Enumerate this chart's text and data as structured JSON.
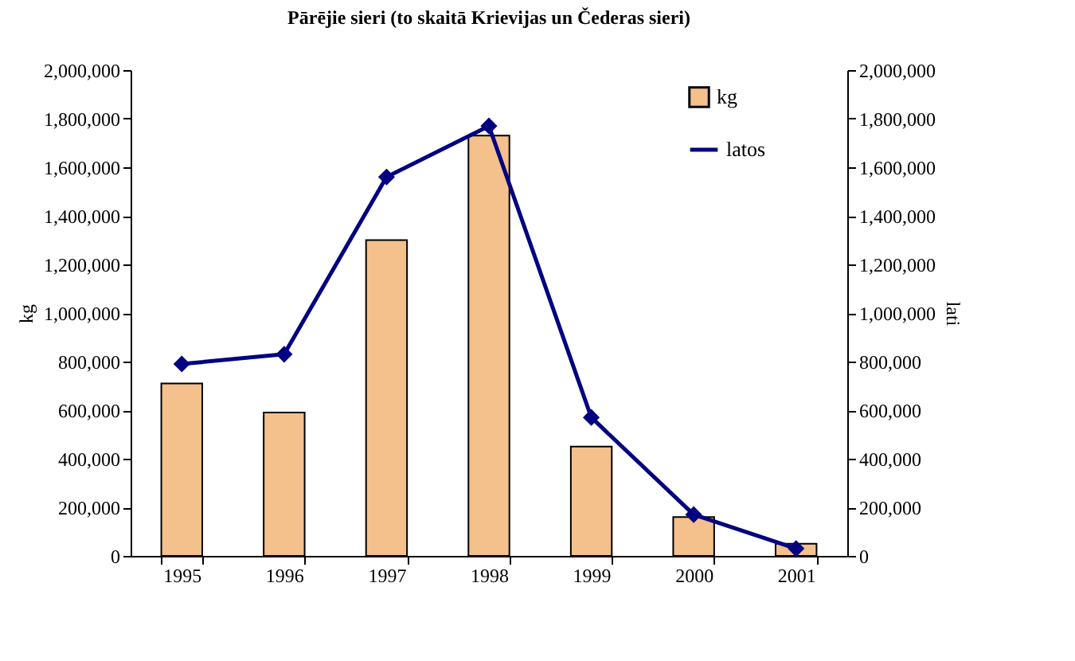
{
  "chart_data": {
    "type": "bar",
    "title": "Pārējie sieri (to skaitā Krievijas un Čederas sieri)",
    "categories": [
      "1995",
      "1996",
      "1997",
      "1998",
      "1999",
      "2000",
      "2001"
    ],
    "series": [
      {
        "name": "kg",
        "color": "#f4c08c",
        "values": [
          710000,
          590000,
          1300000,
          1730000,
          450000,
          160000,
          50000
        ]
      },
      {
        "name": "latos",
        "type": "line",
        "axis": "y2",
        "color": "#000080",
        "values": [
          790000,
          830000,
          1560000,
          1770000,
          570000,
          170000,
          30000
        ]
      }
    ],
    "ylabel": "kg",
    "y2label": "lati",
    "ylim": [
      0,
      2000000
    ],
    "yticks": [
      0,
      {
        "value": 200000,
        "label": "200,000"
      },
      {
        "value": 400000,
        "label": "400,000"
      },
      {
        "value": 600000,
        "label": "600,000"
      },
      {
        "value": 800000,
        "label": "800,000"
      },
      {
        "value": 1000000,
        "label": "1,000,000"
      },
      {
        "value": 1200000,
        "label": "1,200,000"
      },
      {
        "value": 1400000,
        "label": "1,400,000"
      },
      {
        "value": 1600000,
        "label": "1,600,000"
      },
      {
        "value": 1800000,
        "label": "1,800,000"
      },
      {
        "value": 2000000,
        "label": "2,000,000"
      }
    ],
    "y2lim": [
      0,
      2000000
    ],
    "y2ticks": [
      0,
      {
        "value": 200000,
        "label": "200,000"
      },
      {
        "value": 400000,
        "label": "400,000"
      },
      {
        "value": 600000,
        "label": "600,000"
      },
      {
        "value": 800000,
        "label": "800,000"
      },
      {
        "value": 1000000,
        "label": "1,000,000"
      },
      {
        "value": 1200000,
        "label": "1,200,000"
      },
      {
        "value": 1400000,
        "label": "1,400,000"
      },
      {
        "value": 1600000,
        "label": "1,600,000"
      },
      {
        "value": 1800000,
        "label": "1,800,000"
      },
      {
        "value": 2000000,
        "label": "2,000,000"
      }
    ],
    "legend": "top right",
    "marker": "diamond"
  }
}
